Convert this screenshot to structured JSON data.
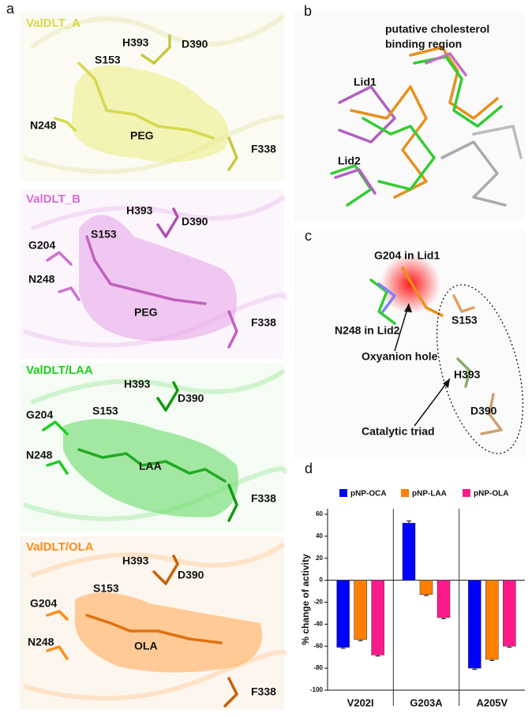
{
  "panel_labels": [
    "a",
    "b",
    "c",
    "d"
  ],
  "panel_a": [
    {
      "title": "ValDLT_A",
      "labels": [
        "H393",
        "D390",
        "S153",
        "N248",
        "PEG",
        "F338"
      ]
    },
    {
      "title": "ValDLT_B",
      "labels": [
        "H393",
        "D390",
        "S153",
        "G204",
        "N248",
        "PEG",
        "F338"
      ]
    },
    {
      "title": "ValDLT/LAA",
      "labels": [
        "H393",
        "D390",
        "S153",
        "G204",
        "N248",
        "LAA",
        "F338"
      ]
    },
    {
      "title": "ValDLT/OLA",
      "labels": [
        "H393",
        "D390",
        "S153",
        "G204",
        "N248",
        "OLA",
        "F338"
      ]
    }
  ],
  "panel_b": {
    "labels": [
      "putative cholesterol",
      "binding region",
      "Lid1",
      "Lid2"
    ]
  },
  "panel_c": {
    "labels": [
      "G204 in Lid1",
      "N248 in Lid2",
      "S153",
      "Oxyanion hole",
      "H393",
      "D390",
      "Catalytic triad"
    ]
  },
  "chart_data": {
    "type": "bar",
    "y_label": "% change of activity",
    "categories": [
      "V202I",
      "G203A",
      "A205V"
    ],
    "series": [
      {
        "name": "pNP-OCA",
        "color": "#0000ff",
        "values": [
          -61,
          52,
          -80
        ],
        "errors": [
          1,
          2,
          1
        ]
      },
      {
        "name": "pNP-LAA",
        "color": "#ff8000",
        "values": [
          -54,
          -13,
          -72
        ],
        "errors": [
          1,
          1,
          1
        ]
      },
      {
        "name": "pNP-OLA",
        "color": "#ff1a8c",
        "values": [
          -68,
          -34,
          -60
        ],
        "errors": [
          1,
          1,
          1
        ]
      }
    ],
    "ylim": [
      -100,
      65
    ],
    "yticks": [
      -100,
      -80,
      -60,
      -40,
      -20,
      0,
      20,
      40,
      60
    ],
    "legend": "top"
  }
}
